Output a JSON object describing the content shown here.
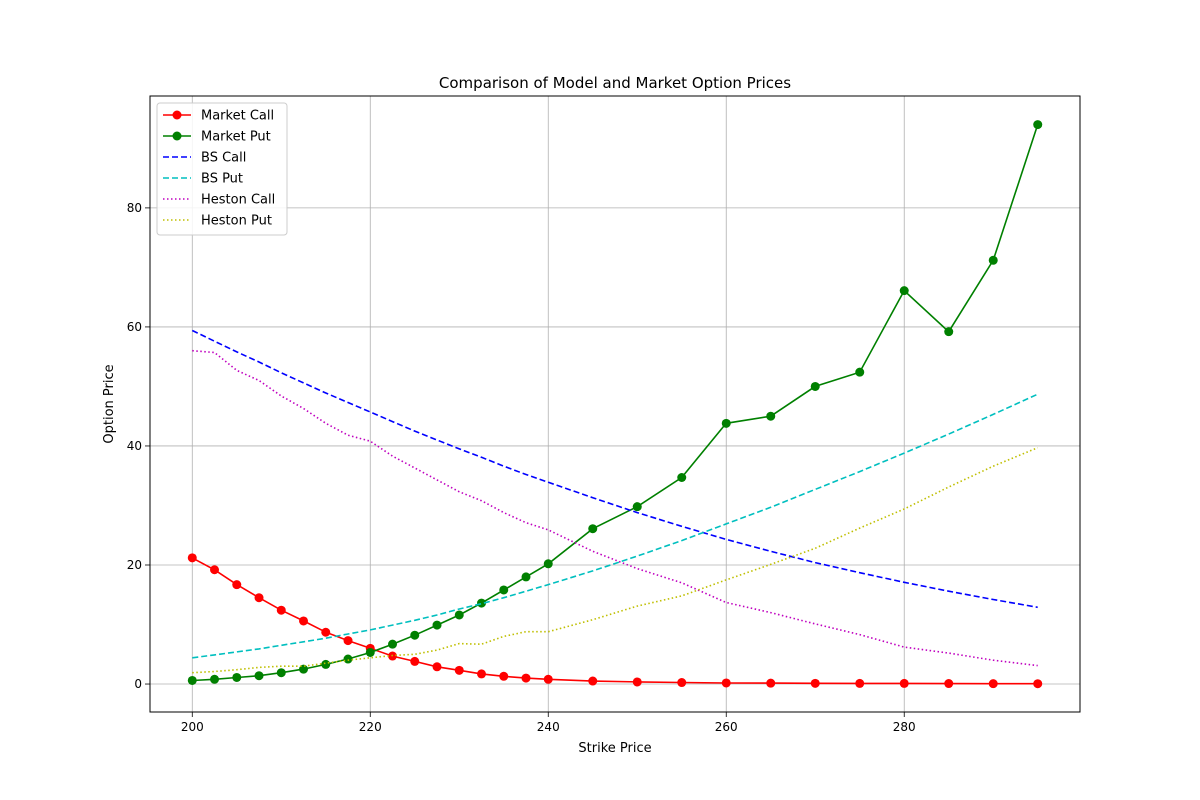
{
  "chart_data": {
    "type": "line",
    "title": "Comparison of Model and Market Option Prices",
    "xlabel": "Strike Price",
    "ylabel": "Option Price",
    "xlim": [
      195.25,
      299.75
    ],
    "ylim": [
      -4.7,
      98.8
    ],
    "xticks": [
      200,
      220,
      240,
      260,
      280
    ],
    "yticks": [
      0,
      20,
      40,
      60,
      80
    ],
    "grid": true,
    "legend_position": "top-left",
    "x": [
      200,
      202.5,
      205,
      207.5,
      210,
      212.5,
      215,
      217.5,
      220,
      222.5,
      225,
      227.5,
      230,
      232.5,
      235,
      237.5,
      240,
      245,
      250,
      255,
      260,
      265,
      270,
      275,
      280,
      285,
      290,
      295
    ],
    "series": [
      {
        "name": "Market Call",
        "color": "#ff0000",
        "style": "solid-marker",
        "values": [
          21.2,
          19.2,
          16.7,
          14.5,
          12.4,
          10.6,
          8.7,
          7.3,
          6.0,
          4.7,
          3.8,
          2.9,
          2.3,
          1.7,
          1.3,
          1.0,
          0.8,
          0.5,
          0.35,
          0.25,
          0.18,
          0.15,
          0.12,
          0.1,
          0.1,
          0.08,
          0.06,
          0.05
        ]
      },
      {
        "name": "Market Put",
        "color": "#008000",
        "style": "solid-marker",
        "values": [
          0.6,
          0.8,
          1.1,
          1.4,
          1.9,
          2.5,
          3.3,
          4.2,
          5.3,
          6.7,
          8.2,
          9.9,
          11.6,
          13.6,
          15.8,
          18.0,
          20.2,
          26.1,
          29.8,
          34.7,
          43.8,
          45.0,
          50.0,
          52.4,
          66.1,
          59.2,
          71.2,
          94.0
        ]
      },
      {
        "name": "BS Call",
        "color": "#0000ff",
        "style": "dashed",
        "values": [
          59.4,
          57.6,
          55.8,
          54.1,
          52.3,
          50.6,
          48.9,
          47.3,
          45.7,
          44.1,
          42.5,
          41.0,
          39.5,
          38.1,
          36.6,
          35.2,
          33.9,
          31.3,
          28.8,
          26.5,
          24.3,
          22.3,
          20.4,
          18.7,
          17.1,
          15.6,
          14.2,
          12.9
        ]
      },
      {
        "name": "BS Put",
        "color": "#00bfbf",
        "style": "dashed",
        "values": [
          4.4,
          4.9,
          5.4,
          5.9,
          6.5,
          7.1,
          7.7,
          8.4,
          9.1,
          9.9,
          10.7,
          11.6,
          12.6,
          13.5,
          14.5,
          15.6,
          16.7,
          19.0,
          21.5,
          24.1,
          26.9,
          29.7,
          32.7,
          35.7,
          38.8,
          42.0,
          45.3,
          48.7
        ]
      },
      {
        "name": "Heston Call",
        "color": "#bf00bf",
        "style": "dotted",
        "values": [
          56.0,
          55.7,
          52.7,
          51.0,
          48.4,
          46.3,
          43.8,
          41.8,
          40.8,
          38.3,
          36.3,
          34.3,
          32.3,
          30.8,
          28.8,
          27.1,
          25.9,
          22.3,
          19.4,
          17.0,
          13.7,
          12.0,
          10.1,
          8.3,
          6.2,
          5.2,
          4.0,
          3.1
        ]
      },
      {
        "name": "Heston Put",
        "color": "#bfbf00",
        "style": "dotted",
        "values": [
          1.9,
          2.1,
          2.4,
          2.8,
          3.0,
          3.0,
          3.5,
          4.0,
          4.4,
          4.8,
          5.0,
          5.7,
          6.8,
          6.7,
          8.0,
          8.8,
          8.8,
          10.8,
          13.1,
          14.8,
          17.5,
          20.1,
          22.8,
          26.2,
          29.4,
          33.1,
          36.6,
          39.7
        ]
      }
    ]
  }
}
